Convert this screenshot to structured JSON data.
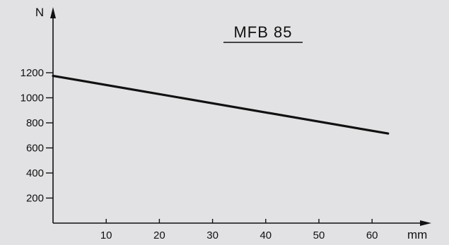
{
  "chart_data": {
    "type": "line",
    "title": "MFB  85",
    "ylabel": "N",
    "xlabel": "mm",
    "xlim": [
      0,
      65
    ],
    "ylim": [
      0,
      1300
    ],
    "x_ticks": [
      10,
      20,
      30,
      40,
      50,
      60
    ],
    "y_ticks": [
      200,
      400,
      600,
      800,
      1000,
      1200
    ],
    "grid": false,
    "series": [
      {
        "x": [
          0,
          63
        ],
        "y": [
          1175,
          715
        ]
      }
    ],
    "colors": {
      "line": "#111111",
      "axis": "#111111",
      "background": "#e2e2e4"
    }
  }
}
